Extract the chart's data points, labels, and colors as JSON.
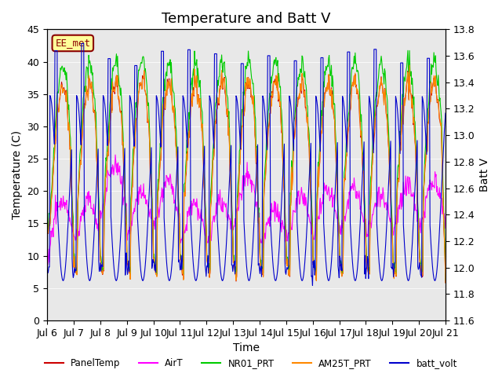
{
  "title": "Temperature and Batt V",
  "xlabel": "Time",
  "ylabel_left": "Temperature (C)",
  "ylabel_right": "Batt V",
  "annotation": "EE_met",
  "x_tick_labels": [
    "Jul 6",
    "Jul 7",
    "Jul 8",
    "Jul 9",
    "Jul 10",
    "Jul 11",
    "Jul 12",
    "Jul 13",
    "Jul 14",
    "Jul 15",
    "Jul 16",
    "Jul 17",
    "Jul 18",
    "Jul 19",
    "Jul 20",
    "Jul 21"
  ],
  "ylim_left": [
    0,
    45
  ],
  "ylim_right": [
    11.6,
    13.8
  ],
  "background_color": "#ffffff",
  "plot_bg_color": "#e8e8e8",
  "series_colors": {
    "PanelTemp": "#cc0000",
    "AirT": "#ff00ff",
    "NR01_PRT": "#00cc00",
    "AM25T_PRT": "#ff8800",
    "batt_volt": "#0000cc"
  },
  "legend_labels": [
    "PanelTemp",
    "AirT",
    "NR01_PRT",
    "AM25T_PRT",
    "batt_volt"
  ],
  "n_days": 15,
  "samples_per_day": 48,
  "title_fontsize": 13,
  "label_fontsize": 10,
  "tick_fontsize": 9
}
